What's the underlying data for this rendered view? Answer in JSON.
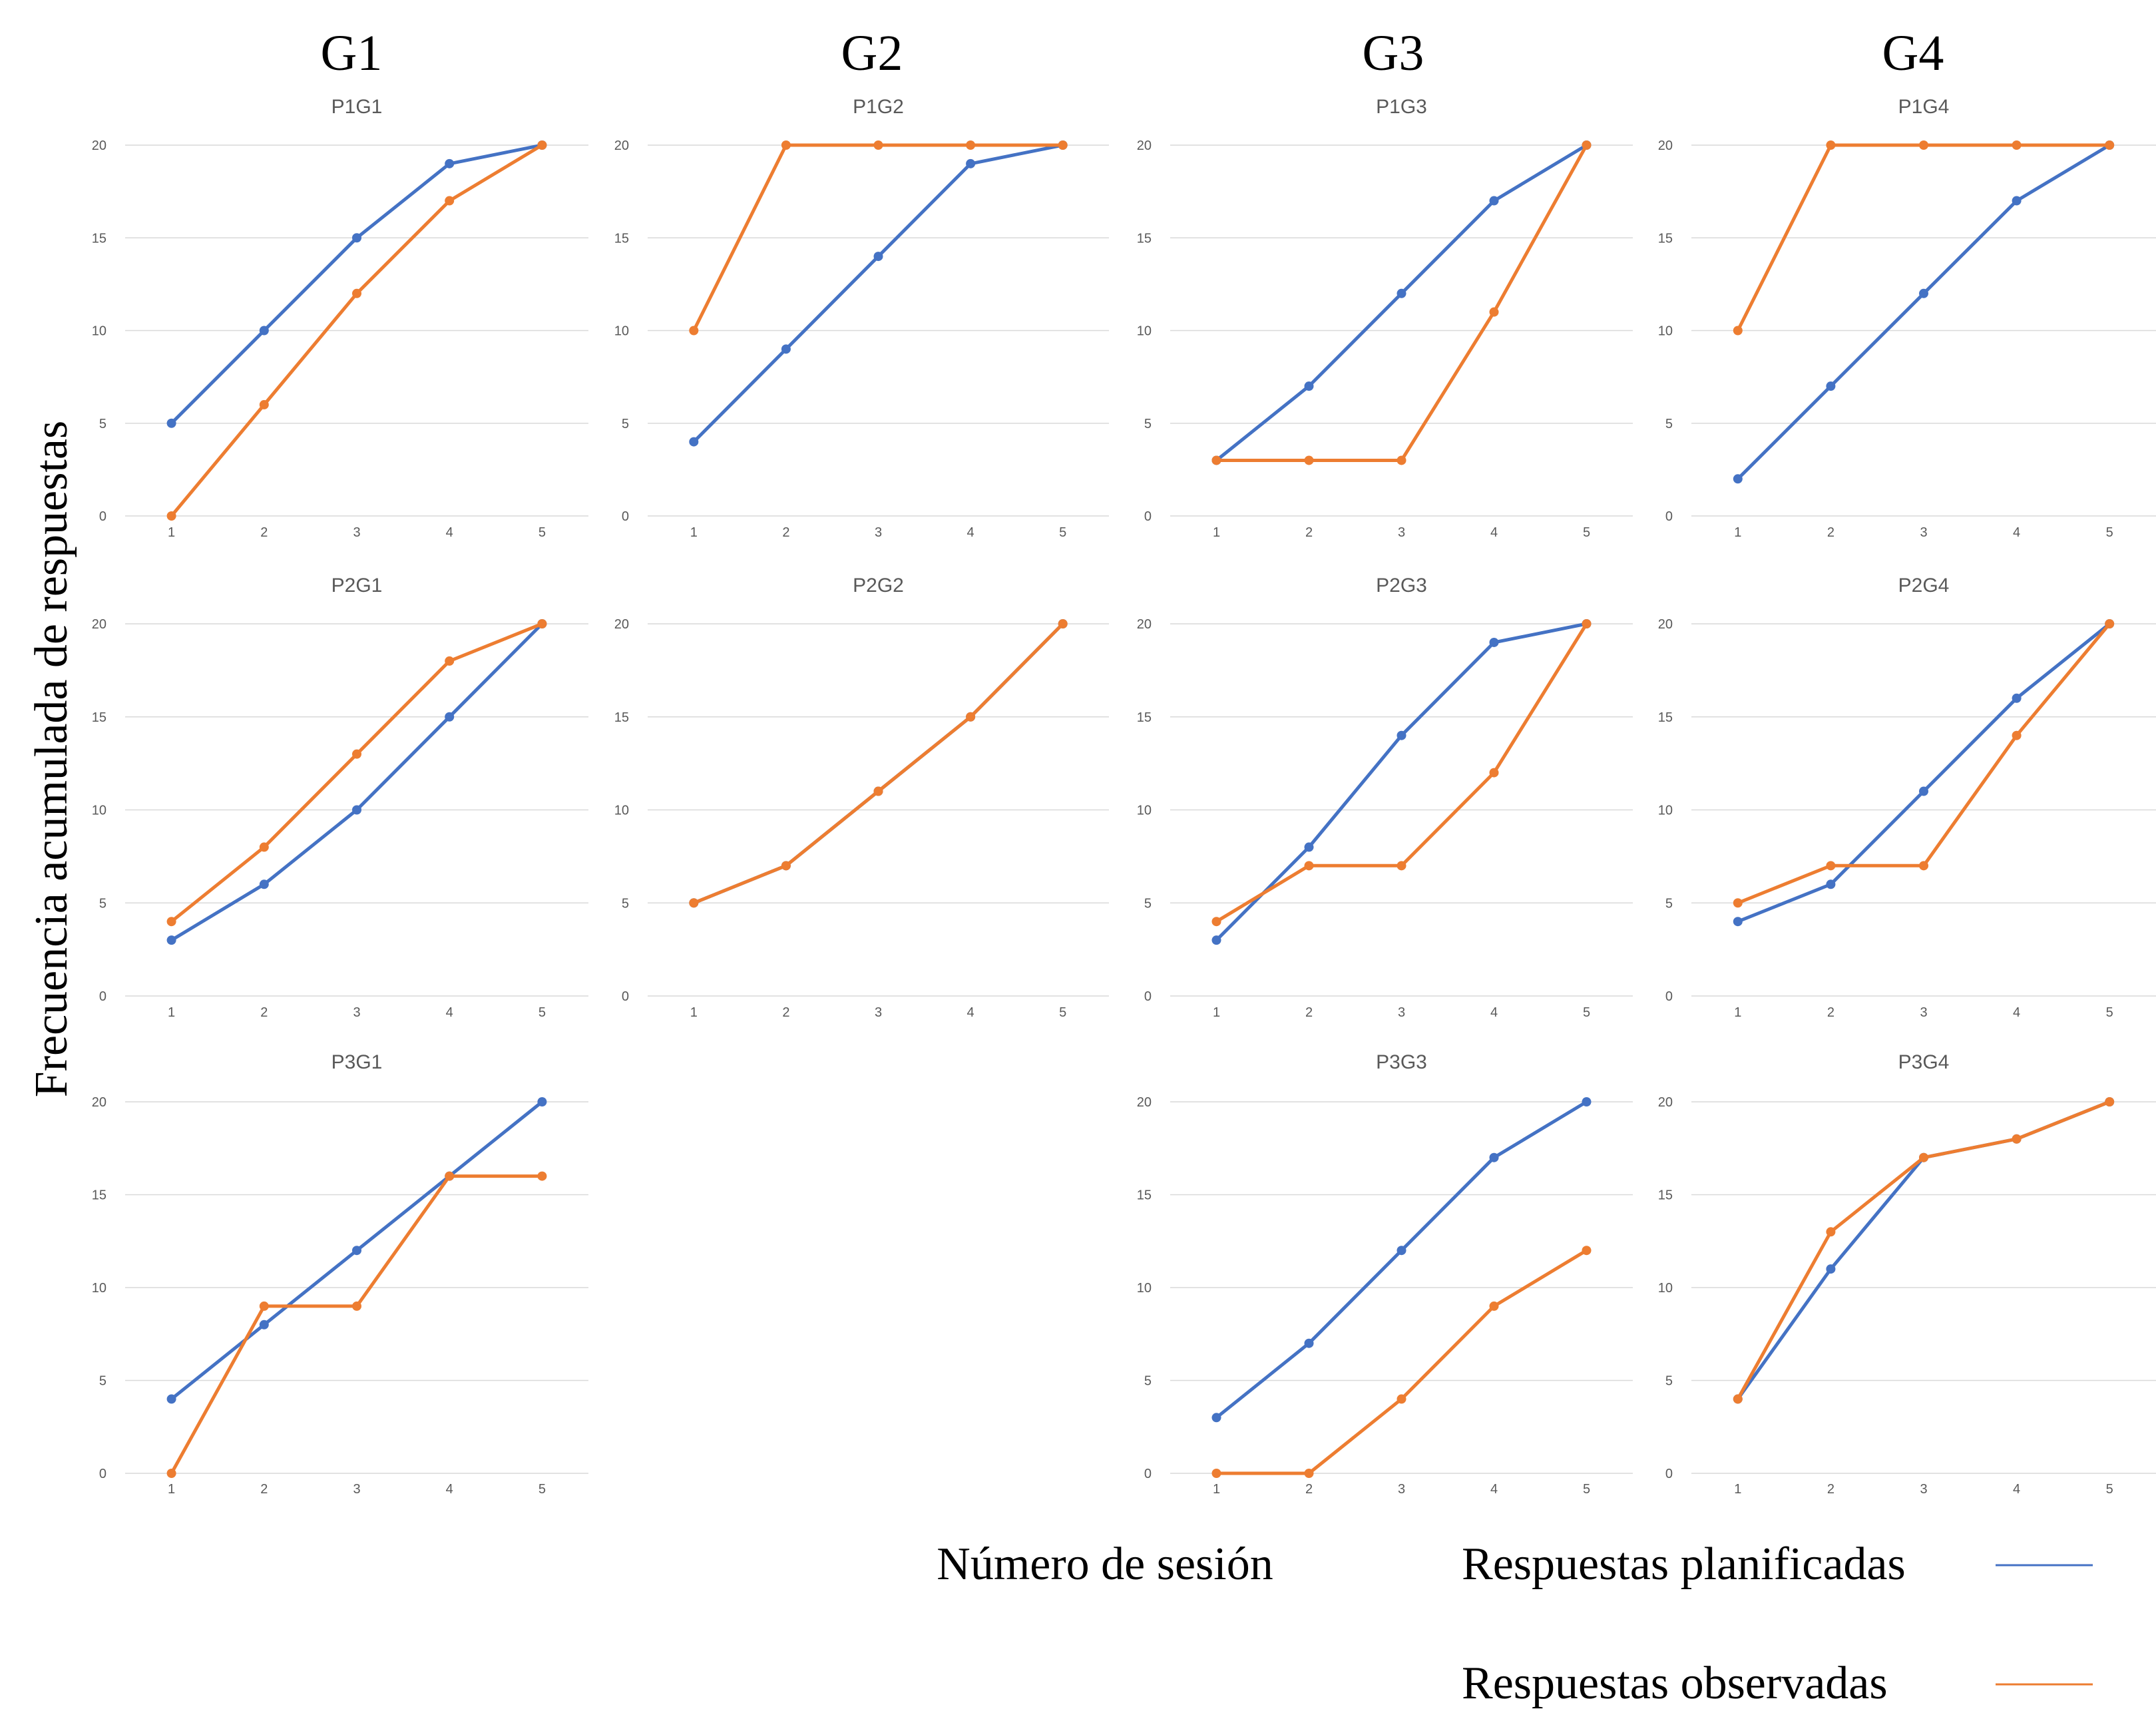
{
  "groups": [
    "G1",
    "G2",
    "G3",
    "G4"
  ],
  "y_axis_label": "Frecuencia acumulada de respuestas",
  "x_axis_label": "Número de sesión",
  "legend": [
    {
      "label": "Respuestas planificadas",
      "color": "#4472C4"
    },
    {
      "label": "Respuestas observadas",
      "color": "#ED7D31"
    }
  ],
  "colors": {
    "planned": "#4472C4",
    "observed": "#ED7D31",
    "grid": "#D9D9D9",
    "text": "#595959"
  },
  "chart_data": [
    {
      "type": "line",
      "title": "P1G1",
      "group": "G1",
      "row": 1,
      "x": [
        1,
        2,
        3,
        4,
        5
      ],
      "ylim": [
        0,
        20
      ],
      "yticks": [
        0,
        5,
        10,
        15,
        20
      ],
      "series": [
        {
          "name": "Respuestas planificadas",
          "values": [
            5,
            10,
            15,
            19,
            20
          ]
        },
        {
          "name": "Respuestas observadas",
          "values": [
            0,
            6,
            12,
            17,
            20
          ]
        }
      ]
    },
    {
      "type": "line",
      "title": "P1G2",
      "group": "G2",
      "row": 1,
      "x": [
        1,
        2,
        3,
        4,
        5
      ],
      "ylim": [
        0,
        20
      ],
      "yticks": [
        0,
        5,
        10,
        15,
        20
      ],
      "series": [
        {
          "name": "Respuestas planificadas",
          "values": [
            4,
            9,
            14,
            19,
            20
          ]
        },
        {
          "name": "Respuestas observadas",
          "values": [
            10,
            20,
            20,
            20,
            20
          ]
        }
      ]
    },
    {
      "type": "line",
      "title": "P1G3",
      "group": "G3",
      "row": 1,
      "x": [
        1,
        2,
        3,
        4,
        5
      ],
      "ylim": [
        0,
        20
      ],
      "yticks": [
        0,
        5,
        10,
        15,
        20
      ],
      "series": [
        {
          "name": "Respuestas planificadas",
          "values": [
            3,
            7,
            12,
            17,
            20
          ]
        },
        {
          "name": "Respuestas observadas",
          "values": [
            3,
            3,
            3,
            11,
            20
          ]
        }
      ]
    },
    {
      "type": "line",
      "title": "P1G4",
      "group": "G4",
      "row": 1,
      "x": [
        1,
        2,
        3,
        4,
        5
      ],
      "ylim": [
        0,
        20
      ],
      "yticks": [
        0,
        5,
        10,
        15,
        20
      ],
      "series": [
        {
          "name": "Respuestas planificadas",
          "values": [
            2,
            7,
            12,
            17,
            20
          ]
        },
        {
          "name": "Respuestas observadas",
          "values": [
            10,
            20,
            20,
            20,
            20
          ]
        }
      ]
    },
    {
      "type": "line",
      "title": "P2G1",
      "group": "G1",
      "row": 2,
      "x": [
        1,
        2,
        3,
        4,
        5
      ],
      "ylim": [
        0,
        20
      ],
      "yticks": [
        0,
        5,
        10,
        15,
        20
      ],
      "series": [
        {
          "name": "Respuestas planificadas",
          "values": [
            3,
            6,
            10,
            15,
            20
          ]
        },
        {
          "name": "Respuestas observadas",
          "values": [
            4,
            8,
            13,
            18,
            20
          ]
        }
      ]
    },
    {
      "type": "line",
      "title": "P2G2",
      "group": "G2",
      "row": 2,
      "x": [
        1,
        2,
        3,
        4,
        5
      ],
      "ylim": [
        0,
        20
      ],
      "yticks": [
        0,
        5,
        10,
        15,
        20
      ],
      "series": [
        {
          "name": "Respuestas planificadas",
          "values": [
            5,
            7,
            11,
            15,
            20
          ]
        },
        {
          "name": "Respuestas observadas",
          "values": [
            5,
            7,
            11,
            15,
            20
          ]
        }
      ]
    },
    {
      "type": "line",
      "title": "P2G3",
      "group": "G3",
      "row": 2,
      "x": [
        1,
        2,
        3,
        4,
        5
      ],
      "ylim": [
        0,
        20
      ],
      "yticks": [
        0,
        5,
        10,
        15,
        20
      ],
      "series": [
        {
          "name": "Respuestas planificadas",
          "values": [
            3,
            8,
            14,
            19,
            20
          ]
        },
        {
          "name": "Respuestas observadas",
          "values": [
            4,
            7,
            7,
            12,
            20
          ]
        }
      ]
    },
    {
      "type": "line",
      "title": "P2G4",
      "group": "G4",
      "row": 2,
      "x": [
        1,
        2,
        3,
        4,
        5
      ],
      "ylim": [
        0,
        20
      ],
      "yticks": [
        0,
        5,
        10,
        15,
        20
      ],
      "series": [
        {
          "name": "Respuestas planificadas",
          "values": [
            4,
            6,
            11,
            16,
            20
          ]
        },
        {
          "name": "Respuestas observadas",
          "values": [
            5,
            7,
            7,
            14,
            20
          ]
        }
      ]
    },
    {
      "type": "line",
      "title": "P3G1",
      "group": "G1",
      "row": 3,
      "x": [
        1,
        2,
        3,
        4,
        5
      ],
      "ylim": [
        0,
        20
      ],
      "yticks": [
        0,
        5,
        10,
        15,
        20
      ],
      "series": [
        {
          "name": "Respuestas planificadas",
          "values": [
            4,
            8,
            12,
            16,
            20
          ]
        },
        {
          "name": "Respuestas observadas",
          "values": [
            0,
            9,
            9,
            16,
            16
          ]
        }
      ]
    },
    {
      "type": "line",
      "title": "P3G3",
      "group": "G3",
      "row": 3,
      "x": [
        1,
        2,
        3,
        4,
        5
      ],
      "ylim": [
        0,
        20
      ],
      "yticks": [
        0,
        5,
        10,
        15,
        20
      ],
      "series": [
        {
          "name": "Respuestas planificadas",
          "values": [
            3,
            7,
            12,
            17,
            20
          ]
        },
        {
          "name": "Respuestas observadas",
          "values": [
            0,
            0,
            4,
            9,
            12
          ]
        }
      ]
    },
    {
      "type": "line",
      "title": "P3G4",
      "group": "G4",
      "row": 3,
      "x": [
        1,
        2,
        3,
        4,
        5
      ],
      "ylim": [
        0,
        20
      ],
      "yticks": [
        0,
        5,
        10,
        15,
        20
      ],
      "series": [
        {
          "name": "Respuestas planificadas",
          "values": [
            4,
            11,
            17,
            18,
            20
          ]
        },
        {
          "name": "Respuestas observadas",
          "values": [
            4,
            13,
            17,
            18,
            20
          ]
        }
      ]
    }
  ]
}
